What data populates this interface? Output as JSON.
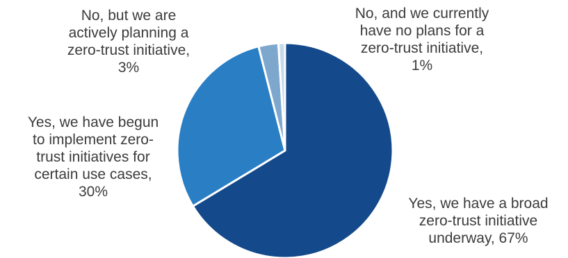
{
  "chart_data": {
    "type": "pie",
    "title": "",
    "start_angle_deg": 0,
    "direction": "clockwise",
    "slices": [
      {
        "label_lines": [
          "Yes, we have a broad",
          "zero-trust initiative",
          "underway, 67%"
        ],
        "value": 67,
        "color": "#14498b"
      },
      {
        "label_lines": [
          "Yes, we have begun",
          "to implement zero-",
          "trust initiatives for",
          "certain use cases,",
          "30%"
        ],
        "value": 30,
        "color": "#2a7ec4"
      },
      {
        "label_lines": [
          "No, but we are",
          "actively planning a",
          "zero-trust initiative,",
          "3%"
        ],
        "value": 3,
        "color": "#7ea7cd"
      },
      {
        "label_lines": [
          "No, and we currently",
          "have no plans for a",
          "zero-trust initiative,",
          "1%"
        ],
        "value": 1,
        "color": "#c7d9eb"
      }
    ]
  }
}
